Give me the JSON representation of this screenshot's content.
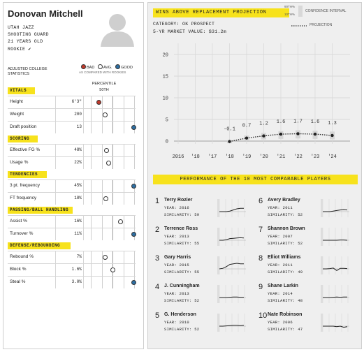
{
  "player": {
    "name": "Donovan Mitchell",
    "team": "UTAH JAZZ",
    "position": "SHOOTING GUARD",
    "age": "21 YEARS OLD",
    "status": "ROOKIE ✔",
    "photo_icon": "person-silhouette-icon"
  },
  "stats_header": {
    "adjusted_label_1": "ADJUSTED COLLEGE",
    "adjusted_label_2": "STATISTICS",
    "legend_bad": "BAD",
    "legend_avg": "AVG.",
    "legend_good": "GOOD",
    "legend_sub": "AS COMPARED WITH ROOKIES",
    "percentile_label": "PERCENTILE",
    "percentile_mid": "50TH",
    "colors": {
      "bad": "#c0392b",
      "avg": "#ffffff",
      "good": "#2e6fa3",
      "accent": "#f7e21c"
    }
  },
  "sections": [
    {
      "title": "VITALS",
      "rows": [
        {
          "label": "Height",
          "value": "6'3\"",
          "percentile": 0.18,
          "rating": "bad"
        },
        {
          "label": "Weight",
          "value": "200",
          "percentile": 0.33,
          "rating": "avg"
        },
        {
          "label": "Draft position",
          "value": "13",
          "percentile": 0.98,
          "rating": "good"
        }
      ]
    },
    {
      "title": "SCORING",
      "rows": [
        {
          "label": "Effective FG %",
          "value": "48%",
          "percentile": 0.35,
          "rating": "avg"
        },
        {
          "label": "Usage %",
          "value": "22%",
          "percentile": 0.4,
          "rating": "avg"
        }
      ]
    },
    {
      "title": "TENDENCIES",
      "rows": [
        {
          "label": "3 pt. frequency",
          "value": "45%",
          "percentile": 0.98,
          "rating": "good"
        },
        {
          "label": "FT frequency",
          "value": "18%",
          "percentile": 0.34,
          "rating": "avg"
        }
      ]
    },
    {
      "title": "PASSING/BALL HANDLING",
      "rows": [
        {
          "label": "Assist %",
          "value": "16%",
          "percentile": 0.68,
          "rating": "avg"
        },
        {
          "label": "Turnover %",
          "value": "11%",
          "percentile": 0.98,
          "rating": "good"
        }
      ]
    },
    {
      "title": "DEFENSE/REBOUNDING",
      "rows": [
        {
          "label": "Rebound %",
          "value": "7%",
          "percentile": 0.33,
          "rating": "avg"
        },
        {
          "label": "Block %",
          "value": "1.6%",
          "percentile": 0.5,
          "rating": "avg"
        },
        {
          "label": "Steal %",
          "value": "3.0%",
          "percentile": 0.98,
          "rating": "good"
        }
      ]
    }
  ],
  "war": {
    "title": "WINS ABOVE REPLACEMENT PROJECTION",
    "category": "CATEGORY: OK PROSPECT",
    "market_prefix": "5-YR MARKET VALUE: ",
    "market_value": "$31.2m",
    "legend_ci_top": "90TH%",
    "legend_ci_bot": "10TH%",
    "legend_ci": "CONFIDENCE INTERVAL",
    "legend_proj": "PROJECTION"
  },
  "chart_data": {
    "type": "line",
    "x": [
      "2016",
      "'18",
      "'17",
      "'18",
      "'19",
      "'20",
      "'21",
      "'22",
      "'23",
      "'24"
    ],
    "series": [
      {
        "values": [
          null,
          null,
          null,
          -0.1,
          0.7,
          1.2,
          1.6,
          1.7,
          1.6,
          1.3
        ]
      }
    ],
    "ci_low": [
      null,
      null,
      null,
      -0.5,
      0.2,
      0.4,
      0.5,
      0.6,
      0.5,
      0.4
    ],
    "ci_high": [
      null,
      null,
      null,
      0.2,
      1.3,
      1.9,
      2.3,
      2.5,
      2.4,
      2.2
    ],
    "data_labels": [
      "",
      "",
      "",
      "-0.1",
      "0.7",
      "1.2",
      "1.6",
      "1.7",
      "1.6",
      "1.3"
    ],
    "y_ticks": [
      "20",
      "15",
      "10",
      "5",
      "0"
    ],
    "ylim": [
      -1,
      20
    ],
    "grid": true
  },
  "comparables": {
    "title": "PERFORMANCE OF THE 10 MOST COMPARABLE PLAYERS",
    "year_label": "YEAR: ",
    "sim_label": "SIMILARITY: ",
    "players": [
      {
        "num": "1",
        "name": "Terry Rozier",
        "year": "2016",
        "sim": "59",
        "trend": [
          0,
          0,
          0,
          0.1,
          0.3,
          0.5,
          0.6,
          0.6
        ]
      },
      {
        "num": "2",
        "name": "Terrence Ross",
        "year": "2013",
        "sim": "55",
        "trend": [
          0,
          0,
          0.1,
          0.3,
          0.35,
          0.4,
          0.45,
          0.4
        ]
      },
      {
        "num": "3",
        "name": "Gary Harris",
        "year": "2015",
        "sim": "55",
        "trend": [
          0,
          0.1,
          0.4,
          0.8,
          0.9,
          1.0,
          0.9,
          0.9
        ]
      },
      {
        "num": "4",
        "name": "J. Cunningham",
        "year": "2013",
        "sim": "52",
        "trend": [
          0,
          0,
          0,
          0.05,
          0.1,
          0.1,
          0.05,
          0.05
        ]
      },
      {
        "num": "5",
        "name": "G. Henderson",
        "year": "2010",
        "sim": "52",
        "trend": [
          0,
          0,
          0.05,
          0.1,
          0.15,
          0.15,
          0.1,
          0.15
        ]
      },
      {
        "num": "6",
        "name": "Avery Bradley",
        "year": "2011",
        "sim": "52",
        "trend": [
          0,
          0,
          0,
          0.1,
          0.2,
          0.3,
          0.35,
          0.3
        ]
      },
      {
        "num": "7",
        "name": "Shannon Brown",
        "year": "2007",
        "sim": "52",
        "trend": [
          0,
          0,
          0,
          0,
          0,
          0.05,
          0.05,
          0
        ]
      },
      {
        "num": "8",
        "name": "Elliot Williams",
        "year": "2011",
        "sim": "49",
        "trend": [
          0,
          0,
          0.05,
          0.15,
          -0.3,
          0.1,
          0.1,
          0.05
        ]
      },
      {
        "num": "9",
        "name": "Shane Larkin",
        "year": "2014",
        "sim": "48",
        "trend": [
          0,
          0,
          0,
          0.05,
          0.1,
          0.05,
          0.1,
          0.1
        ]
      },
      {
        "num": "10",
        "name": "Nate Robinson",
        "year": "2006",
        "sim": "47",
        "trend": [
          0,
          0,
          0,
          0,
          -0.1,
          0,
          -0.2,
          -0.1
        ]
      }
    ]
  }
}
